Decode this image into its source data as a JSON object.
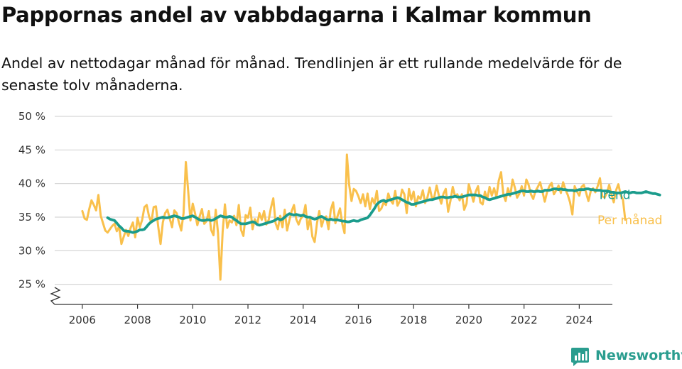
{
  "header": {
    "title": "Pappornas andel av vabbdagarna i Kalmar kommun",
    "subtitle": "Andel av nettodagar månad för månad. Trendlinjen är ett rullande medelvärde för de senaste tolv månaderna."
  },
  "brand": {
    "name": "Newsworthy",
    "color": "#2a9d8f",
    "icon": "newsworthy-logo-icon"
  },
  "chart_data": {
    "type": "line",
    "title": "Pappornas andel av vabbdagarna i Kalmar kommun",
    "subtitle": "Andel av nettodagar månad för månad. Trendlinjen är ett rullande medelvärde för de senaste tolv månaderna.",
    "xlabel": "",
    "ylabel": "",
    "x_ticks": [
      "2006",
      "2008",
      "2010",
      "2012",
      "2014",
      "2016",
      "2018",
      "2020",
      "2022",
      "2024"
    ],
    "x_tick_values": [
      2006,
      2008,
      2010,
      2012,
      2014,
      2016,
      2018,
      2020,
      2022,
      2024
    ],
    "y_ticks": [
      "25 %",
      "30 %",
      "35 %",
      "40 %",
      "45 %",
      "50 %"
    ],
    "y_tick_values": [
      25,
      30,
      35,
      40,
      45,
      50
    ],
    "xlim": [
      2005.0,
      2025.2
    ],
    "ylim": [
      22,
      50
    ],
    "y_axis_break": true,
    "grid": "horizontal",
    "legend": "direct labels at right end of lines",
    "series": [
      {
        "name": "Per månad",
        "color": "#f9c04c",
        "x_start": 2006.0,
        "x_step_months": 1,
        "values": [
          35.9,
          34.8,
          34.6,
          36.2,
          37.5,
          36.8,
          36.0,
          38.3,
          35.2,
          34.1,
          33.0,
          32.7,
          33.2,
          33.7,
          34.0,
          32.9,
          33.6,
          31.0,
          32.1,
          33.1,
          32.2,
          33.4,
          34.2,
          32.0,
          34.9,
          33.5,
          34.6,
          36.5,
          36.8,
          35.1,
          34.2,
          36.5,
          36.6,
          33.6,
          31.0,
          34.2,
          35.6,
          36.1,
          34.8,
          33.5,
          36.0,
          35.6,
          34.2,
          33.0,
          35.6,
          43.2,
          39.0,
          34.5,
          37.0,
          35.6,
          33.8,
          35.1,
          36.2,
          34.0,
          34.4,
          35.9,
          33.1,
          32.3,
          36.1,
          32.6,
          25.7,
          32.8,
          36.9,
          33.4,
          34.5,
          34.2,
          35.2,
          33.8,
          36.8,
          33.1,
          32.2,
          35.3,
          34.9,
          36.4,
          33.2,
          34.7,
          33.9,
          35.6,
          34.6,
          35.9,
          33.9,
          34.6,
          36.4,
          37.8,
          34.1,
          33.2,
          35.2,
          33.5,
          36.1,
          33.0,
          34.5,
          35.9,
          36.8,
          34.7,
          33.9,
          34.8,
          35.2,
          36.8,
          33.2,
          34.9,
          32.1,
          31.3,
          34.1,
          35.9,
          33.6,
          34.8,
          35.1,
          33.2,
          36.1,
          37.2,
          34.1,
          35.2,
          36.3,
          34.0,
          32.6,
          44.3,
          39.8,
          37.4,
          39.2,
          38.9,
          38.1,
          37.1,
          38.4,
          36.6,
          38.5,
          36.2,
          37.8,
          37.0,
          38.9,
          35.9,
          36.3,
          37.2,
          36.8,
          38.5,
          37.5,
          37.0,
          38.9,
          36.7,
          37.4,
          39.1,
          38.4,
          35.6,
          39.2,
          37.6,
          38.8,
          36.6,
          38.1,
          37.7,
          39.0,
          37.1,
          37.9,
          39.4,
          37.8,
          38.0,
          39.7,
          38.2,
          37.0,
          38.5,
          39.2,
          35.8,
          37.4,
          39.5,
          38.1,
          38.4,
          37.5,
          38.4,
          36.1,
          37.0,
          39.9,
          38.6,
          37.3,
          38.8,
          39.6,
          37.2,
          36.9,
          38.8,
          37.6,
          39.5,
          38.2,
          39.3,
          38.0,
          40.4,
          41.7,
          38.4,
          37.4,
          39.3,
          38.1,
          40.6,
          39.4,
          37.9,
          38.5,
          39.6,
          38.2,
          40.6,
          39.8,
          38.4,
          37.7,
          38.9,
          39.5,
          40.2,
          38.8,
          37.3,
          38.7,
          39.6,
          40.1,
          38.4,
          39.0,
          39.7,
          38.6,
          40.2,
          39.1,
          38.3,
          37.2,
          35.4,
          39.6,
          38.8,
          38.2,
          39.5,
          39.8,
          38.6,
          37.4,
          38.9,
          39.3,
          38.7,
          39.6,
          40.8,
          38.1,
          37.9,
          38.6,
          39.8,
          38.4,
          37.2,
          39.0,
          39.9,
          38.3,
          37.6,
          34.6
        ]
      },
      {
        "name": "Trend",
        "color": "#1b9c8c",
        "x_start": 2006.917,
        "x_step_months": 1,
        "values": [
          34.9,
          34.7,
          34.6,
          34.5,
          34.1,
          33.7,
          33.4,
          33.0,
          32.9,
          32.9,
          32.8,
          32.7,
          32.8,
          32.9,
          33.1,
          33.1,
          33.2,
          33.6,
          34.0,
          34.3,
          34.5,
          34.7,
          34.8,
          34.9,
          35.0,
          34.9,
          34.9,
          35.0,
          35.1,
          35.2,
          35.1,
          35.0,
          34.8,
          34.8,
          34.9,
          35.0,
          35.1,
          35.2,
          35.0,
          34.8,
          34.6,
          34.5,
          34.5,
          34.6,
          34.6,
          34.5,
          34.6,
          34.8,
          35.0,
          35.2,
          35.1,
          35.0,
          35.0,
          35.1,
          35.0,
          34.7,
          34.5,
          34.2,
          34.0,
          34.0,
          34.0,
          34.1,
          34.2,
          34.3,
          34.2,
          33.9,
          33.8,
          33.9,
          34.0,
          34.1,
          34.2,
          34.3,
          34.4,
          34.6,
          34.8,
          34.6,
          34.7,
          35.0,
          35.3,
          35.5,
          35.4,
          35.3,
          35.4,
          35.3,
          35.2,
          35.3,
          35.1,
          35.0,
          35.0,
          34.8,
          34.7,
          34.8,
          35.0,
          35.1,
          34.9,
          34.7,
          34.6,
          34.7,
          34.6,
          34.6,
          34.6,
          34.5,
          34.4,
          34.4,
          34.3,
          34.3,
          34.4,
          34.5,
          34.4,
          34.4,
          34.6,
          34.7,
          34.8,
          34.9,
          35.3,
          35.8,
          36.3,
          36.9,
          37.2,
          37.4,
          37.5,
          37.3,
          37.5,
          37.6,
          37.7,
          37.8,
          37.9,
          37.8,
          37.6,
          37.4,
          37.2,
          37.1,
          36.9,
          36.9,
          37.0,
          37.1,
          37.2,
          37.3,
          37.4,
          37.5,
          37.6,
          37.6,
          37.7,
          37.8,
          37.9,
          38.0,
          38.0,
          37.9,
          37.9,
          38.0,
          38.0,
          38.1,
          38.0,
          38.0,
          38.0,
          38.1,
          38.2,
          38.3,
          38.3,
          38.3,
          38.3,
          38.2,
          38.2,
          38.0,
          37.9,
          37.7,
          37.6,
          37.7,
          37.8,
          37.9,
          38.0,
          38.1,
          38.2,
          38.3,
          38.4,
          38.4,
          38.5,
          38.6,
          38.7,
          38.8,
          38.9,
          38.9,
          38.8,
          38.8,
          38.9,
          38.8,
          38.8,
          38.9,
          38.8,
          38.8,
          39.0,
          39.0,
          39.0,
          39.1,
          39.2,
          39.2,
          39.1,
          39.2,
          39.1,
          39.1,
          39.0,
          39.0,
          39.0,
          38.9,
          39.0,
          39.1,
          39.1,
          39.1,
          39.2,
          39.2,
          39.1,
          39.1,
          39.0,
          39.0,
          39.0,
          38.9,
          38.9,
          38.9,
          38.8,
          38.7,
          38.7,
          38.6,
          38.6,
          38.6,
          38.7,
          38.8,
          38.7,
          38.6,
          38.7,
          38.7,
          38.6,
          38.6,
          38.6,
          38.7,
          38.8,
          38.7,
          38.6,
          38.5,
          38.5,
          38.4,
          38.3
        ]
      }
    ]
  }
}
